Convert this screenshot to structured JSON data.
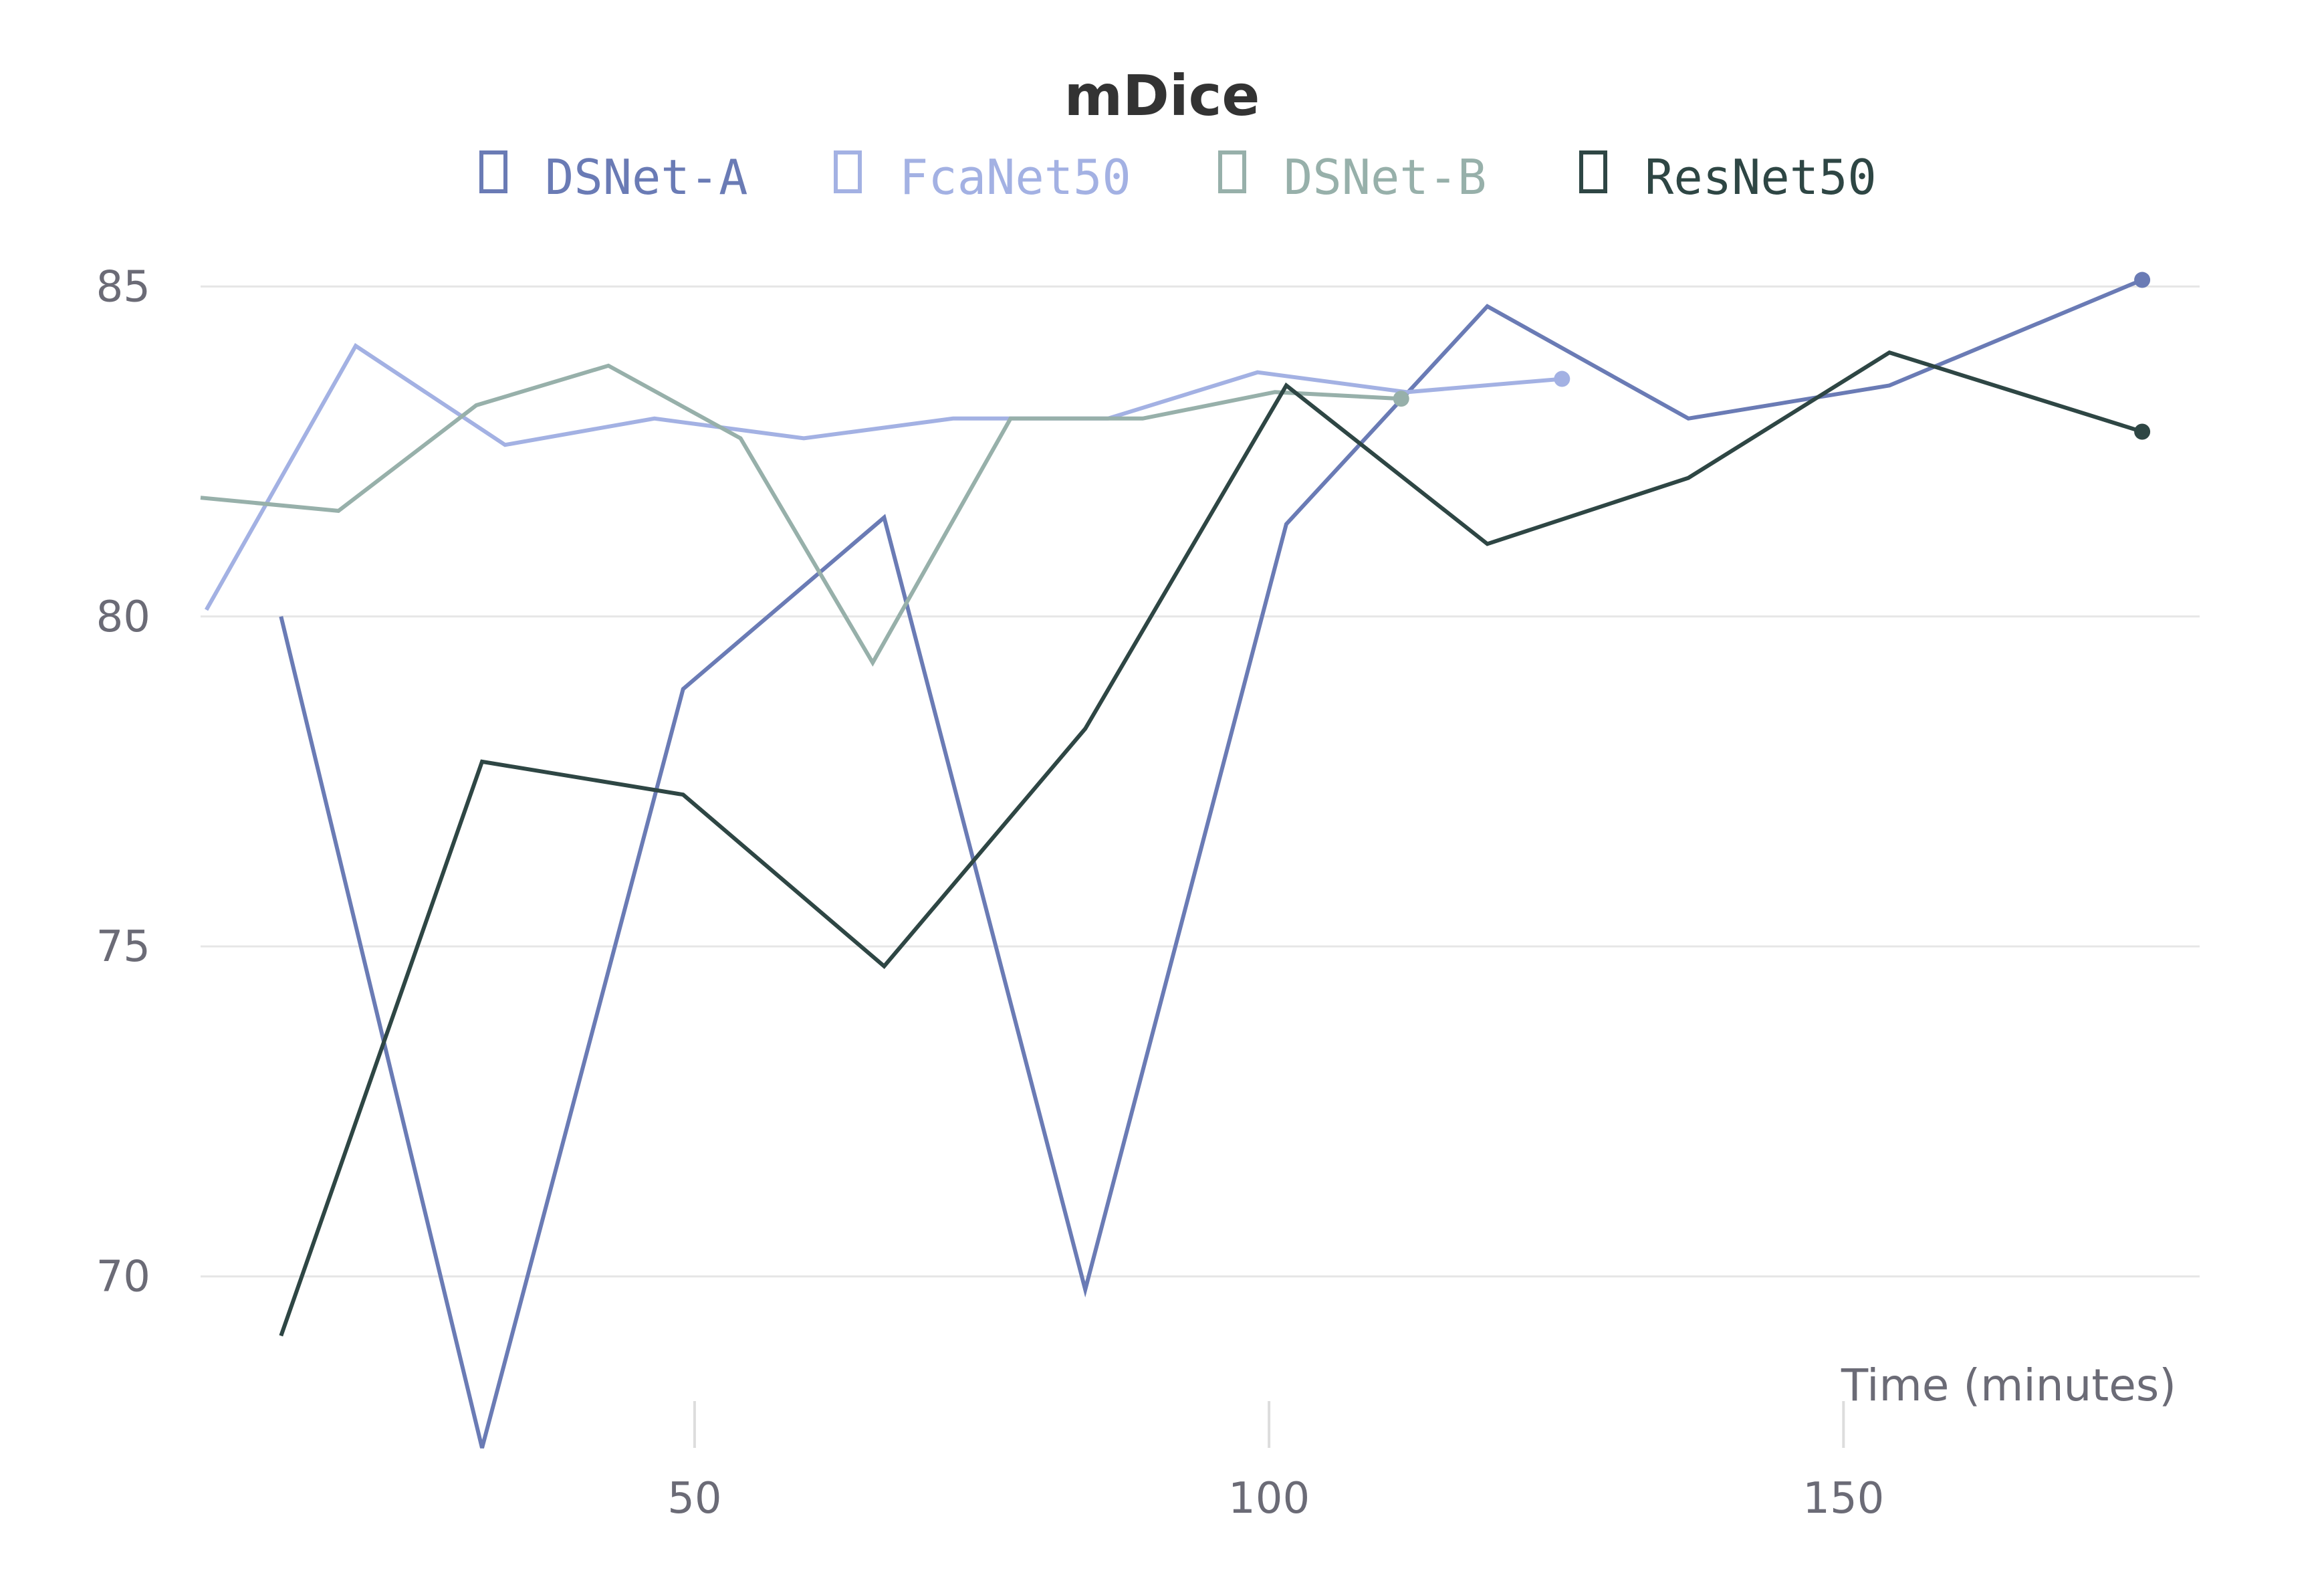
{
  "chart_data": {
    "type": "line",
    "title": "mDice",
    "xlabel": "Time (minutes)",
    "ylabel": "",
    "xlim": [
      7,
      181
    ],
    "ylim": [
      67.3,
      86.2
    ],
    "xticks": [
      50,
      100,
      150
    ],
    "yticks": [
      70,
      75,
      80,
      85
    ],
    "grid": true,
    "legend_position": "top",
    "series": [
      {
        "name": "DSNet-A",
        "color": "#6a7bb5",
        "x": [
          14,
          31.5,
          49,
          66.5,
          84,
          101.5,
          119,
          136.5,
          154,
          176
        ],
        "y": [
          80.0,
          67.4,
          78.9,
          81.5,
          69.8,
          81.4,
          84.7,
          83.0,
          83.5,
          85.1
        ]
      },
      {
        "name": "FcaNet50",
        "color": "#a3b1e3",
        "x": [
          7.5,
          20.5,
          33.5,
          46.5,
          59.5,
          72.5,
          86,
          99,
          112,
          125.5
        ],
        "y": [
          80.1,
          84.1,
          82.6,
          83.0,
          82.7,
          83.0,
          83.0,
          83.7,
          83.4,
          83.6
        ]
      },
      {
        "name": "DSNet-B",
        "color": "#97b0aa",
        "x": [
          7,
          19,
          31,
          42.5,
          54,
          65.5,
          77.5,
          89,
          100.5,
          111.5
        ],
        "y": [
          81.8,
          81.6,
          83.2,
          83.8,
          82.7,
          79.3,
          83.0,
          83.0,
          83.4,
          83.3
        ]
      },
      {
        "name": "ResNet50",
        "color": "#2e4644",
        "x": [
          14,
          31.5,
          49,
          66.5,
          84,
          101.5,
          119,
          136.5,
          154,
          176
        ],
        "y": [
          69.1,
          77.8,
          77.3,
          74.7,
          78.3,
          83.5,
          81.1,
          82.1,
          84.0,
          82.8
        ]
      }
    ]
  }
}
